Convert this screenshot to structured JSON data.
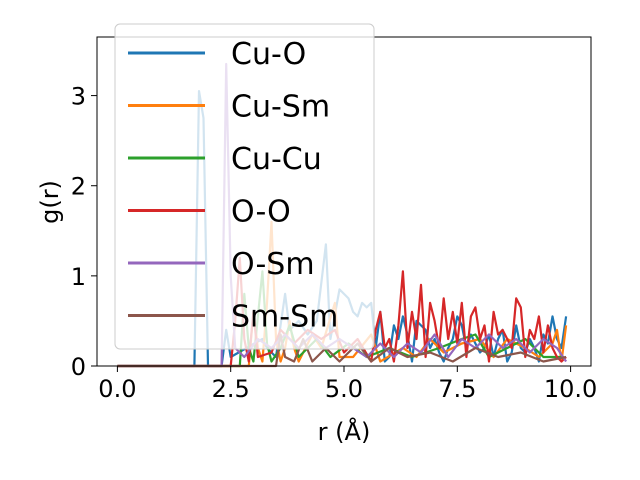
{
  "chart_data": {
    "type": "line",
    "title": "",
    "xlabel": "r (Å)",
    "ylabel": "g(r)",
    "xlim": [
      -0.45,
      10.45
    ],
    "ylim": [
      0,
      3.65
    ],
    "xticks": [
      0.0,
      2.5,
      5.0,
      7.5,
      10.0
    ],
    "xtick_labels": [
      "0.0",
      "2.5",
      "5.0",
      "7.5",
      "10.0"
    ],
    "yticks": [
      0,
      1,
      2,
      3
    ],
    "ytick_labels": [
      "0",
      "1",
      "2",
      "3"
    ],
    "grid": false,
    "legend_position": "upper-left",
    "series": [
      {
        "name": "Cu-O",
        "color": "#1f77b4",
        "points": [
          [
            0.0,
            0
          ],
          [
            1.7,
            0
          ],
          [
            1.8,
            3.05
          ],
          [
            1.9,
            2.75
          ],
          [
            2.0,
            0
          ],
          [
            2.3,
            0
          ],
          [
            2.4,
            0.4
          ],
          [
            2.5,
            0.1
          ],
          [
            3.2,
            0.3
          ],
          [
            3.3,
            0.2
          ],
          [
            3.5,
            0.1
          ],
          [
            3.7,
            0.8
          ],
          [
            3.8,
            0.4
          ],
          [
            4.0,
            0.5
          ],
          [
            4.2,
            0.35
          ],
          [
            4.4,
            0.5
          ],
          [
            4.6,
            1.35
          ],
          [
            4.7,
            0.3
          ],
          [
            4.9,
            0.85
          ],
          [
            5.0,
            0.8
          ],
          [
            5.1,
            0.75
          ],
          [
            5.2,
            0.6
          ],
          [
            5.3,
            0.55
          ],
          [
            5.4,
            0.7
          ],
          [
            5.5,
            0.65
          ],
          [
            5.6,
            0.7
          ],
          [
            5.7,
            0.2
          ],
          [
            5.8,
            0.6
          ],
          [
            5.9,
            0.05
          ],
          [
            6.0,
            0.1
          ],
          [
            6.1,
            0.45
          ],
          [
            6.2,
            0.3
          ],
          [
            6.3,
            0.55
          ],
          [
            6.4,
            0.35
          ],
          [
            6.5,
            0.05
          ],
          [
            6.6,
            0.5
          ],
          [
            6.7,
            0.45
          ],
          [
            6.8,
            0.4
          ],
          [
            6.9,
            0.2
          ],
          [
            7.0,
            0.3
          ],
          [
            7.1,
            0.15
          ],
          [
            7.2,
            0.05
          ],
          [
            7.3,
            0.2
          ],
          [
            7.4,
            0.3
          ],
          [
            7.5,
            0.55
          ],
          [
            7.6,
            0.45
          ],
          [
            7.7,
            0.2
          ],
          [
            7.8,
            0.35
          ],
          [
            7.9,
            0.25
          ],
          [
            8.0,
            0.15
          ],
          [
            8.1,
            0.2
          ],
          [
            8.2,
            0.35
          ],
          [
            8.3,
            0.1
          ],
          [
            8.4,
            0.3
          ],
          [
            8.5,
            0.4
          ],
          [
            8.6,
            0.05
          ],
          [
            8.7,
            0.15
          ],
          [
            8.8,
            0.45
          ],
          [
            8.9,
            0.2
          ],
          [
            9.0,
            0.15
          ],
          [
            9.1,
            0.3
          ],
          [
            9.2,
            0.2
          ],
          [
            9.3,
            0.05
          ],
          [
            9.4,
            0.35
          ],
          [
            9.5,
            0.25
          ],
          [
            9.6,
            0.55
          ],
          [
            9.7,
            0.3
          ],
          [
            9.8,
            0.2
          ],
          [
            9.9,
            0.55
          ]
        ]
      },
      {
        "name": "Cu-Sm",
        "color": "#ff7f0e",
        "points": [
          [
            0.0,
            0
          ],
          [
            2.9,
            0
          ],
          [
            3.0,
            0.6
          ],
          [
            3.1,
            0.2
          ],
          [
            3.2,
            0.05
          ],
          [
            3.3,
            0.7
          ],
          [
            3.4,
            1.6
          ],
          [
            3.5,
            0.3
          ],
          [
            3.6,
            0.05
          ],
          [
            3.7,
            0.2
          ],
          [
            3.8,
            0.5
          ],
          [
            3.9,
            0.2
          ],
          [
            4.0,
            0.05
          ],
          [
            4.3,
            0.35
          ],
          [
            4.5,
            0.2
          ],
          [
            4.8,
            0.7
          ],
          [
            4.9,
            0.1
          ],
          [
            5.2,
            0.1
          ],
          [
            5.6,
            0.35
          ],
          [
            5.8,
            0.05
          ],
          [
            6.3,
            0.2
          ],
          [
            6.6,
            0.1
          ],
          [
            6.9,
            0.3
          ],
          [
            7.2,
            0.15
          ],
          [
            7.6,
            0.25
          ],
          [
            8.0,
            0.3
          ],
          [
            8.3,
            0.1
          ],
          [
            8.6,
            0.3
          ],
          [
            9.0,
            0.2
          ],
          [
            9.3,
            0.1
          ],
          [
            9.6,
            0.25
          ],
          [
            9.7,
            0.4
          ],
          [
            9.8,
            0.05
          ],
          [
            9.9,
            0.45
          ]
        ]
      },
      {
        "name": "Cu-Cu",
        "color": "#2ca02c",
        "points": [
          [
            0.0,
            0
          ],
          [
            2.7,
            0
          ],
          [
            2.8,
            0.8
          ],
          [
            2.9,
            0.2
          ],
          [
            3.0,
            0.05
          ],
          [
            3.2,
            1.05
          ],
          [
            3.3,
            0.25
          ],
          [
            3.4,
            0.05
          ],
          [
            3.6,
            0.2
          ],
          [
            3.8,
            0.45
          ],
          [
            4.0,
            0.1
          ],
          [
            4.4,
            0.3
          ],
          [
            4.7,
            0.1
          ],
          [
            5.1,
            0.25
          ],
          [
            5.5,
            0.1
          ],
          [
            6.0,
            0.2
          ],
          [
            6.5,
            0.1
          ],
          [
            7.1,
            0.2
          ],
          [
            7.6,
            0.3
          ],
          [
            7.9,
            0.35
          ],
          [
            8.2,
            0.1
          ],
          [
            8.6,
            0.2
          ],
          [
            9.0,
            0.3
          ],
          [
            9.4,
            0.1
          ],
          [
            9.8,
            0.1
          ]
        ]
      },
      {
        "name": "O-O",
        "color": "#d62728",
        "points": [
          [
            0.0,
            0
          ],
          [
            2.5,
            0
          ],
          [
            2.6,
            0.5
          ],
          [
            2.7,
            1.2
          ],
          [
            2.8,
            0.3
          ],
          [
            2.9,
            0.05
          ],
          [
            3.0,
            0.6
          ],
          [
            3.1,
            0.1
          ],
          [
            3.4,
            0.15
          ],
          [
            3.6,
            0.4
          ],
          [
            3.9,
            0.25
          ],
          [
            4.2,
            0.4
          ],
          [
            4.5,
            0.3
          ],
          [
            4.8,
            0.4
          ],
          [
            5.0,
            0.15
          ],
          [
            5.3,
            0.3
          ],
          [
            5.6,
            0.05
          ],
          [
            5.7,
            0.4
          ],
          [
            5.8,
            0.6
          ],
          [
            5.9,
            0.2
          ],
          [
            6.0,
            0.3
          ],
          [
            6.1,
            0.05
          ],
          [
            6.2,
            0.45
          ],
          [
            6.3,
            1.05
          ],
          [
            6.4,
            0.2
          ],
          [
            6.5,
            0.6
          ],
          [
            6.6,
            0.3
          ],
          [
            6.7,
            0.9
          ],
          [
            6.8,
            0.1
          ],
          [
            6.9,
            0.7
          ],
          [
            7.0,
            0.5
          ],
          [
            7.1,
            0.2
          ],
          [
            7.2,
            0.75
          ],
          [
            7.3,
            0.3
          ],
          [
            7.4,
            0.6
          ],
          [
            7.5,
            0.25
          ],
          [
            7.6,
            0.7
          ],
          [
            7.7,
            0.1
          ],
          [
            7.8,
            0.55
          ],
          [
            7.9,
            0.65
          ],
          [
            8.0,
            0.3
          ],
          [
            8.1,
            0.45
          ],
          [
            8.2,
            0.05
          ],
          [
            8.3,
            0.6
          ],
          [
            8.4,
            0.35
          ],
          [
            8.5,
            0.4
          ],
          [
            8.6,
            0.3
          ],
          [
            8.7,
            0.2
          ],
          [
            8.8,
            0.75
          ],
          [
            8.9,
            0.65
          ],
          [
            9.0,
            0.1
          ],
          [
            9.1,
            0.4
          ],
          [
            9.2,
            0.3
          ],
          [
            9.3,
            0.55
          ],
          [
            9.4,
            0.15
          ],
          [
            9.5,
            0.45
          ],
          [
            9.6,
            0.2
          ],
          [
            9.7,
            0.1
          ],
          [
            9.8,
            0.05
          ],
          [
            9.9,
            0.1
          ]
        ]
      },
      {
        "name": "O-Sm",
        "color": "#9467bd",
        "points": [
          [
            0.0,
            0
          ],
          [
            2.3,
            0
          ],
          [
            2.4,
            3.35
          ],
          [
            2.5,
            1.0
          ],
          [
            2.6,
            0.2
          ],
          [
            2.8,
            0.1
          ],
          [
            3.1,
            0.3
          ],
          [
            3.4,
            0.2
          ],
          [
            3.7,
            0.35
          ],
          [
            4.0,
            0.2
          ],
          [
            4.3,
            0.35
          ],
          [
            4.6,
            0.2
          ],
          [
            4.9,
            0.3
          ],
          [
            5.2,
            0.2
          ],
          [
            5.5,
            0.1
          ],
          [
            5.8,
            0.25
          ],
          [
            6.1,
            0.1
          ],
          [
            6.4,
            0.25
          ],
          [
            6.7,
            0.15
          ],
          [
            7.0,
            0.35
          ],
          [
            7.3,
            0.1
          ],
          [
            7.6,
            0.3
          ],
          [
            7.9,
            0.2
          ],
          [
            8.2,
            0.35
          ],
          [
            8.5,
            0.2
          ],
          [
            8.8,
            0.3
          ],
          [
            9.1,
            0.15
          ],
          [
            9.4,
            0.3
          ],
          [
            9.7,
            0.2
          ],
          [
            9.9,
            0.05
          ]
        ]
      },
      {
        "name": "Sm-Sm",
        "color": "#8c564b",
        "points": [
          [
            0.0,
            0
          ],
          [
            3.5,
            0
          ],
          [
            3.6,
            0.35
          ],
          [
            3.7,
            0.1
          ],
          [
            3.9,
            0.05
          ],
          [
            4.1,
            0.3
          ],
          [
            4.3,
            0.05
          ],
          [
            4.6,
            0.2
          ],
          [
            4.9,
            0.05
          ],
          [
            5.3,
            0.25
          ],
          [
            5.6,
            0.05
          ],
          [
            6.0,
            0.2
          ],
          [
            6.4,
            0.1
          ],
          [
            6.9,
            0.15
          ],
          [
            7.4,
            0.05
          ],
          [
            7.9,
            0.2
          ],
          [
            8.4,
            0.1
          ],
          [
            8.9,
            0.15
          ],
          [
            9.4,
            0.05
          ],
          [
            9.9,
            0.1
          ]
        ]
      }
    ]
  }
}
